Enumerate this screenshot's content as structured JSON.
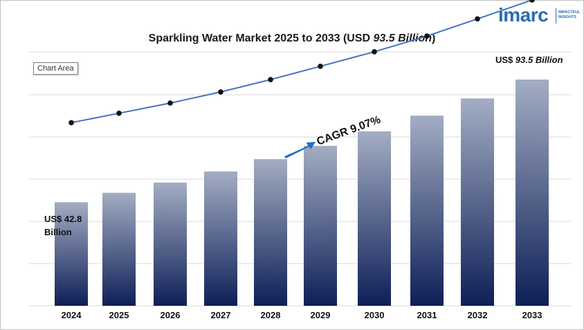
{
  "logo": {
    "word": "imarc",
    "tagline": "IMPACTFUL INSIGHTS"
  },
  "title": {
    "prefix": "Sparkling Water Market  2025 to 2033 (USD ",
    "amount": "93.5 Billion",
    "suffix": ")"
  },
  "chart_area_label": "Chart Area",
  "colors": {
    "bar_top": "#a3adc3",
    "bar_bottom": "#0e1f57",
    "line": "#4472c4",
    "marker": "#111111",
    "arrow": "#1f6fc0",
    "grid": "#d9d9d9"
  },
  "chart_data": {
    "type": "bar",
    "categories": [
      "2024",
      "2025",
      "2026",
      "2027",
      "2028",
      "2029",
      "2030",
      "2031",
      "2032",
      "2033"
    ],
    "values": [
      42.8,
      46.7,
      50.9,
      55.5,
      60.6,
      66.1,
      72.1,
      78.6,
      85.7,
      93.5
    ],
    "overlay_line": true,
    "grid": true,
    "annotations": {
      "start_label_line1": "US$ 42.8",
      "start_label_line2": "Billion",
      "end_label_prefix": "US$ ",
      "end_label_amount": "93.5 Billion",
      "cagr": "CAGR 9.07%"
    }
  }
}
